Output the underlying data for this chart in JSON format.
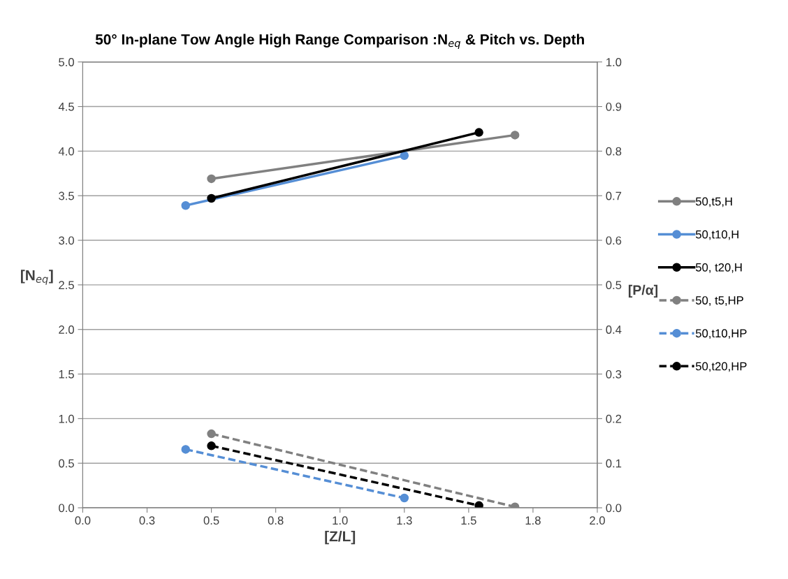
{
  "chart_data": {
    "type": "line",
    "title": "50° In-plane Tow Angle High Range Comparison :N$_{eq}$ & Pitch vs. Depth",
    "xlabel": "[Z/L]",
    "ylabel": "[N$_{eq}$]",
    "y2label": "[P/α]",
    "xlim": [
      0,
      2
    ],
    "xticks": [
      {
        "value": 0,
        "label": "0.0"
      },
      {
        "value": 0.25,
        "label": "0.3"
      },
      {
        "value": 0.5,
        "label": "0.5"
      },
      {
        "value": 0.75,
        "label": "0.8"
      },
      {
        "value": 1,
        "label": "1.0"
      },
      {
        "value": 1.25,
        "label": "1.3"
      },
      {
        "value": 1.5,
        "label": "1.5"
      },
      {
        "value": 1.75,
        "label": "1.8"
      },
      {
        "value": 2,
        "label": "2.0"
      }
    ],
    "ylim": [
      0,
      5
    ],
    "yticks": [
      {
        "value": 0,
        "label": "0.0"
      },
      {
        "value": 0.5,
        "label": "0.5"
      },
      {
        "value": 1,
        "label": "1.0"
      },
      {
        "value": 1.5,
        "label": "1.5"
      },
      {
        "value": 2,
        "label": "2.0"
      },
      {
        "value": 2.5,
        "label": "2.5"
      },
      {
        "value": 3,
        "label": "3.0"
      },
      {
        "value": 3.5,
        "label": "3.5"
      },
      {
        "value": 4,
        "label": "4.0"
      },
      {
        "value": 4.5,
        "label": "4.5"
      },
      {
        "value": 5,
        "label": "5.0"
      }
    ],
    "y2lim": [
      0,
      1
    ],
    "y2ticks": [
      {
        "value": 0,
        "label": "0.0"
      },
      {
        "value": 0.1,
        "label": "0.1"
      },
      {
        "value": 0.2,
        "label": "0.2"
      },
      {
        "value": 0.3,
        "label": "0.3"
      },
      {
        "value": 0.4,
        "label": "0.4"
      },
      {
        "value": 0.5,
        "label": "0.5"
      },
      {
        "value": 0.6,
        "label": "0.6"
      },
      {
        "value": 0.7,
        "label": "0.7"
      },
      {
        "value": 0.8,
        "label": "0.8"
      },
      {
        "value": 0.9,
        "label": "0.9"
      },
      {
        "value": 1,
        "label": "1.0"
      }
    ],
    "grid": "y",
    "legend": "right",
    "marker": "circle",
    "series": [
      {
        "name": "50,t5,H",
        "color": "#808080",
        "x": [
          0.5,
          1.68
        ],
        "values": [
          3.69,
          4.18
        ],
        "line_style": "solid"
      },
      {
        "name": "50,t10,H",
        "color": "#558ed5",
        "x": [
          0.4,
          1.25
        ],
        "values": [
          3.39,
          3.95
        ],
        "line_style": "solid"
      },
      {
        "name": "50, t20,H",
        "color": "#000000",
        "x": [
          0.5,
          1.54
        ],
        "values": [
          3.47,
          4.21
        ],
        "line_style": "solid"
      },
      {
        "name": "50, t5,HP",
        "color": "#808080",
        "x": [
          0.5,
          1.68
        ],
        "values": [
          0.166,
          0.002
        ],
        "line_style": "dashed",
        "axis": "y2"
      },
      {
        "name": "50,t10,HP",
        "color": "#558ed5",
        "x": [
          0.4,
          1.25
        ],
        "values": [
          0.131,
          0.022
        ],
        "line_style": "dashed",
        "axis": "y2"
      },
      {
        "name": "50,t20,HP",
        "color": "#000000",
        "x": [
          0.5,
          1.54
        ],
        "values": [
          0.139,
          0.005
        ],
        "line_style": "dashed",
        "axis": "y2"
      }
    ]
  }
}
